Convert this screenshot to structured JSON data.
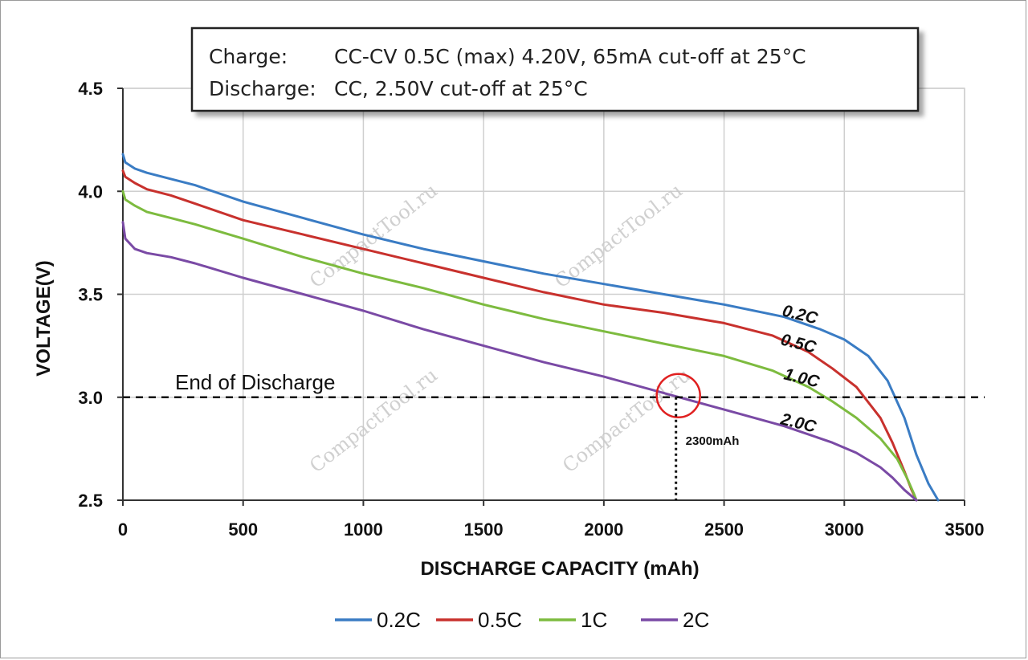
{
  "chart_data": {
    "type": "line",
    "xlabel": "DISCHARGE CAPACITY (mAh)",
    "ylabel": "VOLTAGE(V)",
    "xlim": [
      0,
      3500
    ],
    "ylim": [
      2.5,
      4.5
    ],
    "x_ticks": [
      "0",
      "500",
      "1000",
      "1500",
      "2000",
      "2500",
      "3000",
      "3500"
    ],
    "y_ticks": [
      "2.5",
      "3.0",
      "3.5",
      "4.0",
      "4.5"
    ],
    "grid": true,
    "legend_position": "bottom",
    "info_box": {
      "charge_label": "Charge:",
      "charge_text": "CC-CV 0.5C (max) 4.20V, 65mA cut-off at 25°C",
      "discharge_label": "Discharge:",
      "discharge_text": "CC, 2.50V cut-off at 25°C"
    },
    "end_of_discharge": {
      "label": "End of Discharge",
      "voltage": 3.0
    },
    "marker": {
      "label": "2300mAh",
      "x": 2300,
      "y": 3.0
    },
    "watermark": "CompactTool.ru",
    "series": [
      {
        "name": "0.2C",
        "curve_label": "0.2C",
        "color": "#3a7cc4",
        "points": [
          [
            0,
            4.18
          ],
          [
            10,
            4.14
          ],
          [
            50,
            4.11
          ],
          [
            100,
            4.09
          ],
          [
            200,
            4.06
          ],
          [
            300,
            4.03
          ],
          [
            500,
            3.95
          ],
          [
            750,
            3.87
          ],
          [
            1000,
            3.79
          ],
          [
            1250,
            3.72
          ],
          [
            1500,
            3.66
          ],
          [
            1750,
            3.6
          ],
          [
            2000,
            3.55
          ],
          [
            2250,
            3.5
          ],
          [
            2500,
            3.45
          ],
          [
            2750,
            3.39
          ],
          [
            2900,
            3.33
          ],
          [
            3000,
            3.28
          ],
          [
            3100,
            3.2
          ],
          [
            3180,
            3.08
          ],
          [
            3250,
            2.9
          ],
          [
            3300,
            2.72
          ],
          [
            3350,
            2.58
          ],
          [
            3390,
            2.5
          ]
        ]
      },
      {
        "name": "0.5C",
        "curve_label": "0.5C",
        "color": "#c8312d",
        "points": [
          [
            0,
            4.1
          ],
          [
            10,
            4.07
          ],
          [
            50,
            4.04
          ],
          [
            100,
            4.01
          ],
          [
            200,
            3.98
          ],
          [
            300,
            3.94
          ],
          [
            500,
            3.86
          ],
          [
            750,
            3.79
          ],
          [
            1000,
            3.72
          ],
          [
            1250,
            3.65
          ],
          [
            1500,
            3.58
          ],
          [
            1750,
            3.51
          ],
          [
            2000,
            3.45
          ],
          [
            2250,
            3.41
          ],
          [
            2500,
            3.36
          ],
          [
            2700,
            3.3
          ],
          [
            2850,
            3.22
          ],
          [
            2950,
            3.14
          ],
          [
            3050,
            3.05
          ],
          [
            3150,
            2.9
          ],
          [
            3200,
            2.78
          ],
          [
            3250,
            2.64
          ],
          [
            3280,
            2.55
          ],
          [
            3300,
            2.5
          ]
        ]
      },
      {
        "name": "1C",
        "curve_label": "1.0C",
        "color": "#7dbb3f",
        "points": [
          [
            0,
            4.0
          ],
          [
            10,
            3.96
          ],
          [
            50,
            3.93
          ],
          [
            100,
            3.9
          ],
          [
            200,
            3.87
          ],
          [
            300,
            3.84
          ],
          [
            500,
            3.77
          ],
          [
            750,
            3.68
          ],
          [
            1000,
            3.6
          ],
          [
            1250,
            3.53
          ],
          [
            1500,
            3.45
          ],
          [
            1750,
            3.38
          ],
          [
            2000,
            3.32
          ],
          [
            2250,
            3.26
          ],
          [
            2500,
            3.2
          ],
          [
            2700,
            3.13
          ],
          [
            2850,
            3.05
          ],
          [
            2950,
            2.98
          ],
          [
            3050,
            2.9
          ],
          [
            3150,
            2.8
          ],
          [
            3220,
            2.7
          ],
          [
            3260,
            2.61
          ],
          [
            3290,
            2.53
          ],
          [
            3300,
            2.5
          ]
        ]
      },
      {
        "name": "2C",
        "curve_label": "2.0C",
        "color": "#7a4aa5",
        "points": [
          [
            0,
            3.85
          ],
          [
            10,
            3.77
          ],
          [
            50,
            3.72
          ],
          [
            100,
            3.7
          ],
          [
            200,
            3.68
          ],
          [
            300,
            3.65
          ],
          [
            500,
            3.58
          ],
          [
            750,
            3.5
          ],
          [
            1000,
            3.42
          ],
          [
            1250,
            3.33
          ],
          [
            1500,
            3.25
          ],
          [
            1750,
            3.17
          ],
          [
            2000,
            3.1
          ],
          [
            2250,
            3.02
          ],
          [
            2500,
            2.94
          ],
          [
            2750,
            2.86
          ],
          [
            2950,
            2.78
          ],
          [
            3050,
            2.73
          ],
          [
            3150,
            2.66
          ],
          [
            3200,
            2.61
          ],
          [
            3250,
            2.55
          ],
          [
            3300,
            2.5
          ]
        ]
      }
    ]
  }
}
